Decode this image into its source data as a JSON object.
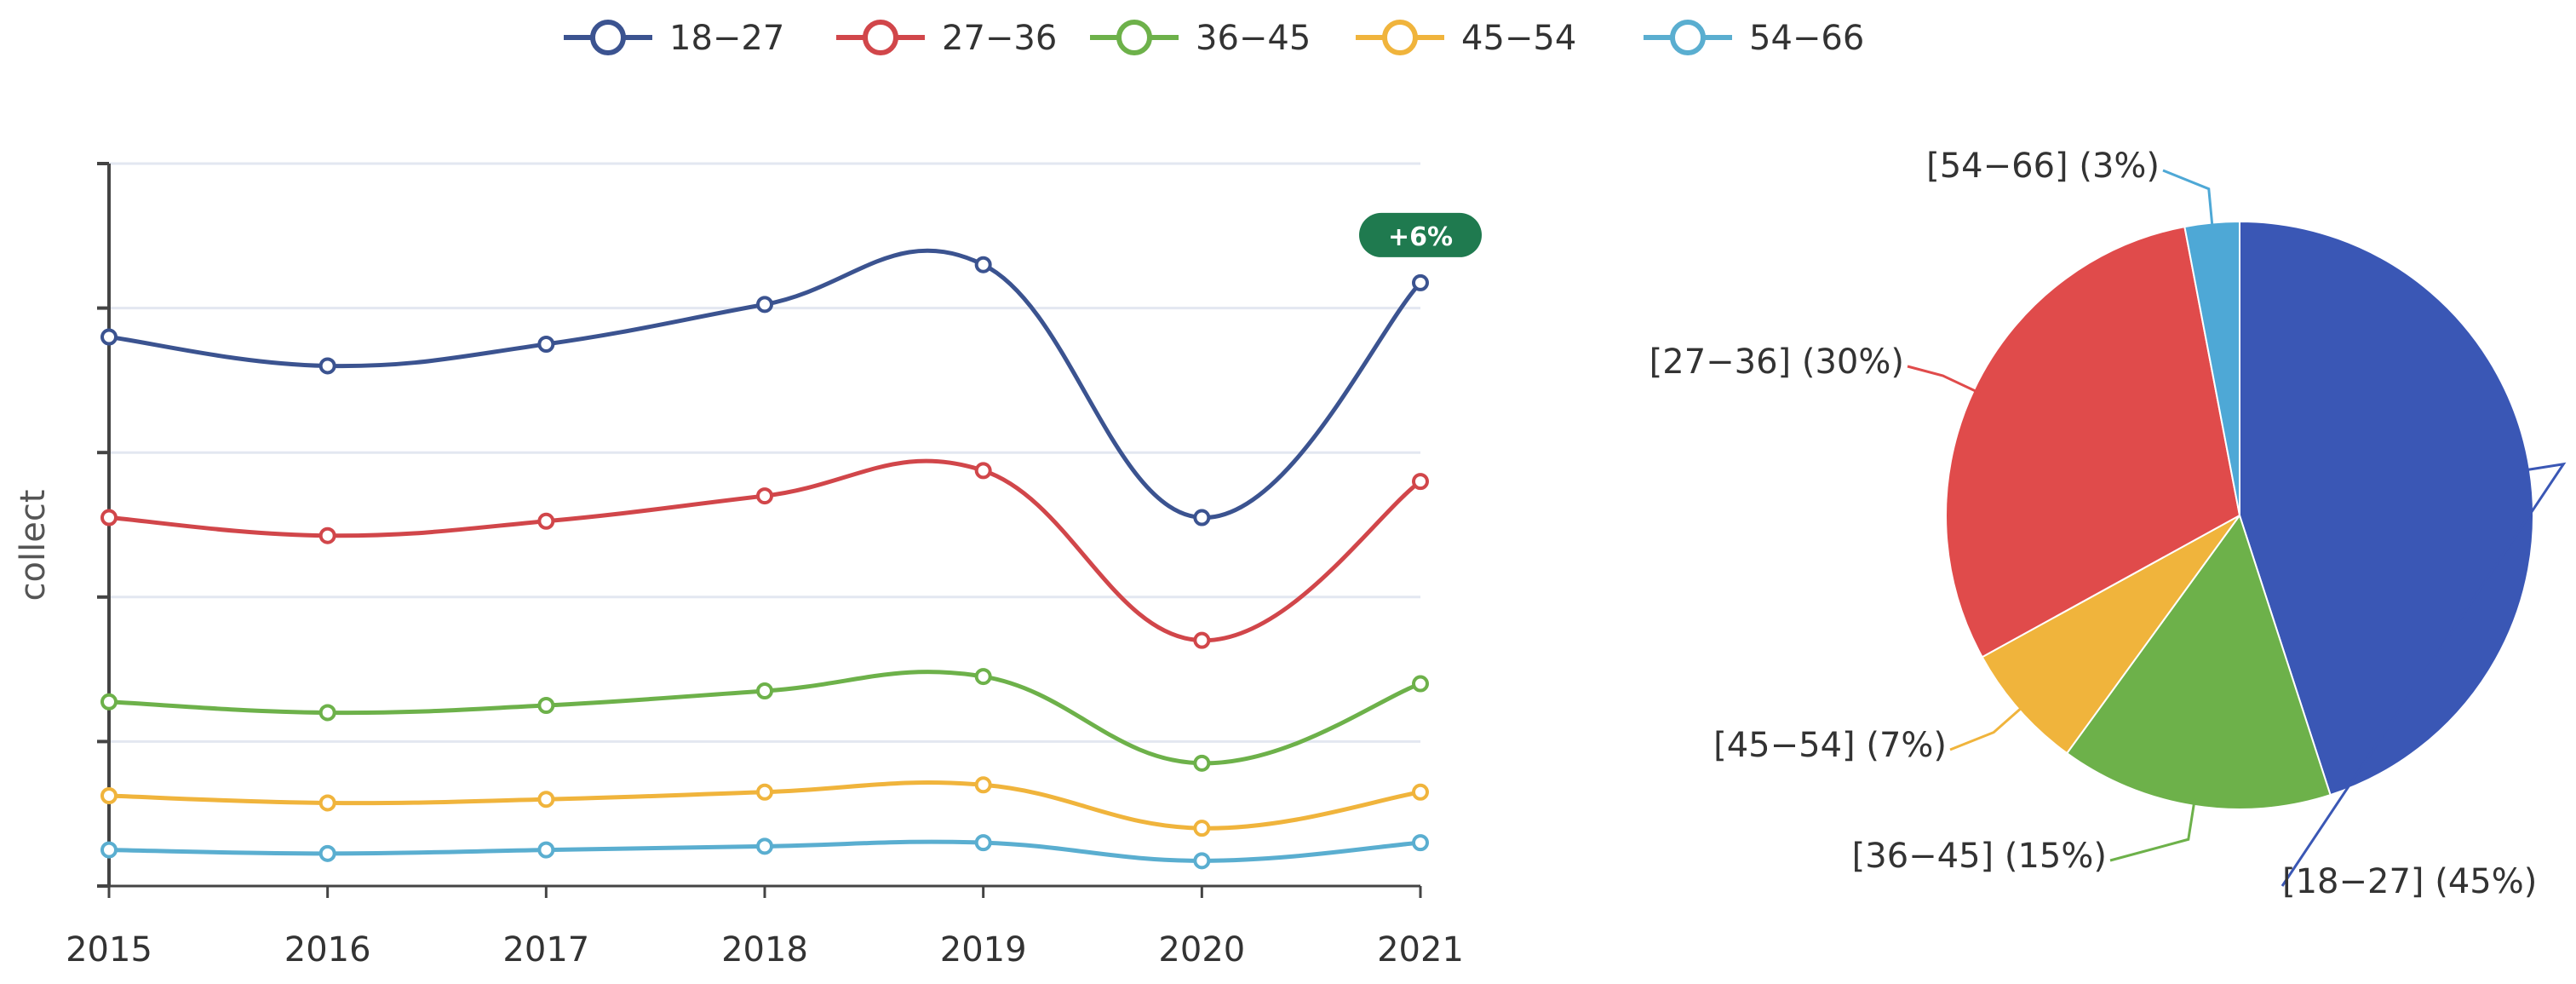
{
  "chart_data": [
    {
      "type": "line",
      "smooth": true,
      "title": "",
      "xlabel": "",
      "ylabel": "collect",
      "categories": [
        "2015",
        "2016",
        "2017",
        "2018",
        "2019",
        "2020",
        "2021"
      ],
      "ylim": [
        0,
        100
      ],
      "grid": true,
      "legend": "top-center",
      "series": [
        {
          "name": "18−27",
          "color": "#3b5390",
          "values": [
            76,
            72,
            75,
            80.5,
            86,
            51,
            83.5
          ]
        },
        {
          "name": "27−36",
          "color": "#d1464a",
          "values": [
            51,
            48.5,
            50.5,
            54,
            57.5,
            34,
            56
          ]
        },
        {
          "name": "36−45",
          "color": "#6db14a",
          "values": [
            25.5,
            24,
            25,
            27,
            29,
            17,
            28
          ]
        },
        {
          "name": "45−54",
          "color": "#f0b43c",
          "values": [
            12.5,
            11.5,
            12,
            13,
            14,
            8,
            13
          ]
        },
        {
          "name": "54−66",
          "color": "#5aaed0",
          "values": [
            5,
            4.5,
            5,
            5.5,
            6,
            3.5,
            6
          ]
        }
      ],
      "annotation": {
        "text": "+6%",
        "series": "18−27",
        "category": "2021",
        "color": "#1f7a4f"
      }
    },
    {
      "type": "pie",
      "slices": [
        {
          "name": "[18−27]",
          "value": 45,
          "label": "[18−27] (45%)",
          "color": "#3a57b5"
        },
        {
          "name": "[36−45]",
          "value": 15,
          "label": "[36−45] (15%)",
          "color": "#6db14a"
        },
        {
          "name": "[45−54]",
          "value": 7,
          "label": "[45−54] (7%)",
          "color": "#f0b43c"
        },
        {
          "name": "[27−36]",
          "value": 30,
          "label": "[27−36] (30%)",
          "color": "#e04b4b"
        },
        {
          "name": "[54−66]",
          "value": 3,
          "label": "[54−66] (3%)",
          "color": "#4ea8d6"
        }
      ]
    }
  ]
}
